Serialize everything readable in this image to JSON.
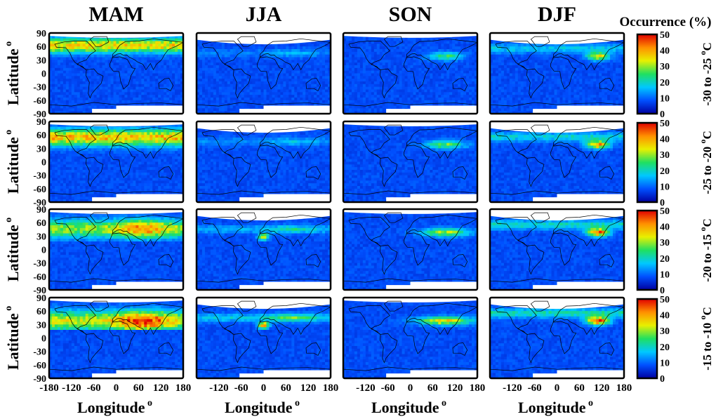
{
  "figure": {
    "season_titles": [
      "MAM",
      "JJA",
      "SON",
      "DJF"
    ],
    "row_labels": [
      "-30 to -25",
      "-25 to -20",
      "-20 to -15",
      "-15 to -10"
    ],
    "temp_unit_sup": "o",
    "temp_unit": "C",
    "ylabel": "Latitude",
    "xlabel": "Longitude",
    "axis_unit_sup": "o",
    "colorbar_title": "Occurrence (%)",
    "colorbar_ticks": [
      "0",
      "10",
      "20",
      "30",
      "40",
      "50"
    ],
    "lat_ticks": [
      "90",
      "60",
      "30",
      "0",
      "-30",
      "-60",
      "-90"
    ],
    "lon_ticks_first": [
      "-180",
      "-120",
      "-60",
      "0",
      "60",
      "120",
      "180"
    ],
    "lon_ticks_other": [
      "-120",
      "-60",
      "0",
      "60",
      "120",
      "180"
    ]
  },
  "colors": {
    "background": "#3a2aa0",
    "colormap": [
      "#0000a0",
      "#0050ff",
      "#00c8ff",
      "#20e060",
      "#e8f000",
      "#ff9000",
      "#e00000"
    ],
    "missing": "#ffffff",
    "coastline": "#000000"
  },
  "chart_data": {
    "type": "heatmap",
    "title": "",
    "xlabel": "Longitude",
    "ylabel": "Latitude",
    "xlim": [
      -180,
      180
    ],
    "ylim": [
      -90,
      90
    ],
    "colorbar_range": [
      0,
      50
    ],
    "colorbar_label": "Occurrence (%)",
    "columns": [
      "MAM",
      "JJA",
      "SON",
      "DJF"
    ],
    "rows": [
      "-30 to -25 °C",
      "-25 to -20 °C",
      "-20 to -15 °C",
      "-15 to -10 °C"
    ],
    "approx_peak_occurrence_percent": [
      [
        30,
        15,
        18,
        28
      ],
      [
        32,
        18,
        20,
        34
      ],
      [
        33,
        28,
        25,
        38
      ],
      [
        38,
        38,
        30,
        42
      ]
    ],
    "approx_peak_region": [
      [
        "60-75N all longitudes",
        "60N, 60-120E",
        "40N, 60-120E",
        "40N, 100-120E"
      ],
      [
        "40-70N all longitudes",
        "40N, 0-120E",
        "40N, 60-120E",
        "35N, 90-120E"
      ],
      [
        "30-60N, 30-120E",
        "30N, 0E and 40N 60-120E",
        "35N, 60-120E",
        "35N, 90-120E"
      ],
      [
        "30-40N, 30-120E",
        "25N, 0E",
        "35N, 60-150E",
        "35N, 100-130E"
      ]
    ]
  }
}
